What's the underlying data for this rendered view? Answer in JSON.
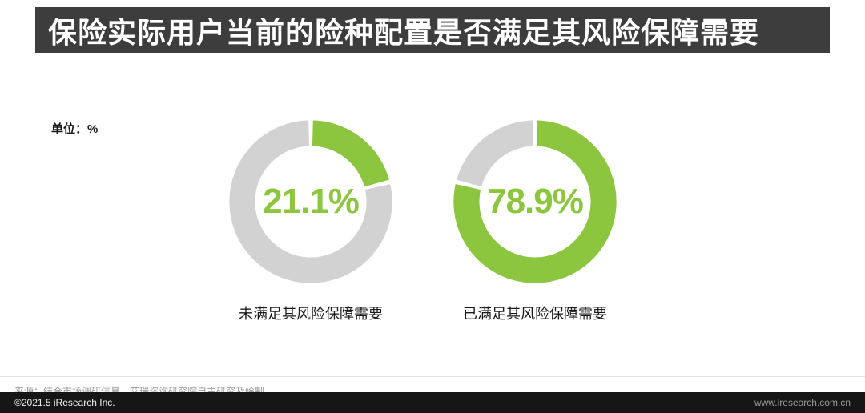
{
  "header": {
    "title": "保险实际用户当前的险种配置是否满足其风险保障需要"
  },
  "chart_data": {
    "type": "pie",
    "variant": "donut",
    "title": "保险实际用户当前的险种配置是否满足其风险保障需要",
    "unit_label": "单位：%",
    "legend_position": "below-each-donut",
    "series": [
      {
        "name": "未满足其风险保障需要",
        "value": 21.1,
        "value_label": "21.1%"
      },
      {
        "name": "已满足其风险保障需要",
        "value": 78.9,
        "value_label": "78.9%"
      }
    ],
    "colors": {
      "accent_green": "#8CC63E",
      "track_gray": "#D2D2D2",
      "title_bar": "#3D3D3D",
      "footer_bar": "#161616"
    }
  },
  "footer": {
    "source": "来源：结合市场调研信息，艾瑞咨询研究院自主研究及绘制。",
    "copyright": "©2021.5 iResearch Inc.",
    "website": "www.iresearch.com.cn"
  }
}
